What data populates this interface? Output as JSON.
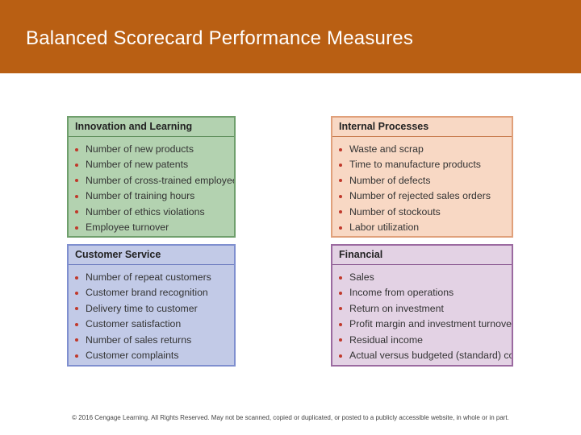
{
  "slide": {
    "title": "Balanced Scorecard Performance Measures",
    "footer": "© 2016 Cengage Learning. All Rights Reserved. May not be scanned, copied or duplicated, or posted to a publicly accessible website, in whole or in part."
  },
  "colors": {
    "title_bar": "#b95f13",
    "innovation_bg": "#b3d2b0",
    "internal_bg": "#f8d8c4",
    "customer_bg": "#c2cae7",
    "financial_bg": "#e3d2e4",
    "bullet": "#c0392b"
  },
  "quadrants": {
    "innovation": {
      "title": "Innovation and Learning",
      "items": [
        "Number of new products",
        "Number of new patents",
        "Number of cross-trained employees",
        "Number of training hours",
        "Number of ethics violations",
        "Employee turnover"
      ]
    },
    "internal": {
      "title": "Internal Processes",
      "items": [
        "Waste and scrap",
        "Time to manufacture products",
        "Number of defects",
        "Number of rejected sales orders",
        "Number of stockouts",
        "Labor utilization"
      ]
    },
    "customer": {
      "title": "Customer Service",
      "items": [
        "Number of repeat customers",
        "Customer brand recognition",
        "Delivery time to customer",
        "Customer satisfaction",
        "Number of sales returns",
        "Customer complaints"
      ]
    },
    "financial": {
      "title": "Financial",
      "items": [
        "Sales",
        "Income from operations",
        "Return on investment",
        "Profit margin and investment turnover",
        "Residual income",
        "Actual versus budgeted (standard) costs"
      ]
    }
  }
}
